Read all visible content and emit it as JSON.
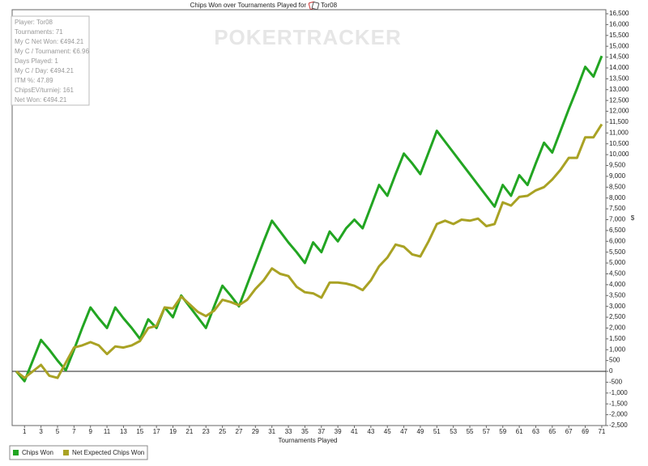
{
  "chart_data": {
    "type": "line",
    "title": "Chips Won over Tournaments Played for",
    "player": "Tor08",
    "watermark": "POKERTRACKER",
    "x_label": "Tournaments Played",
    "y_label": "$",
    "info_box": [
      "Player: Tor08",
      "Tournaments: 71",
      "My C Net Won: €494.21",
      "My C / Tournament: €6.96",
      "Days Played: 1",
      "My C / Day: €494.21",
      "ITM %: 47.89",
      "ChipsEV/turniej: 161",
      "Net Won: €494.21"
    ],
    "legend": "bottom",
    "x": [
      0,
      1,
      2,
      3,
      4,
      5,
      6,
      7,
      8,
      9,
      10,
      11,
      12,
      13,
      14,
      15,
      16,
      17,
      18,
      19,
      20,
      21,
      22,
      23,
      24,
      25,
      26,
      27,
      28,
      29,
      30,
      31,
      32,
      33,
      34,
      35,
      36,
      37,
      38,
      39,
      40,
      41,
      42,
      43,
      44,
      45,
      46,
      47,
      48,
      49,
      50,
      51,
      52,
      53,
      54,
      55,
      56,
      57,
      58,
      59,
      60,
      61,
      62,
      63,
      64,
      65,
      66,
      67,
      68,
      69,
      70,
      71
    ],
    "xlim": [
      -0.5,
      71.5
    ],
    "xticks": [
      1,
      3,
      5,
      7,
      9,
      11,
      13,
      15,
      17,
      19,
      21,
      23,
      25,
      27,
      29,
      31,
      33,
      35,
      37,
      39,
      41,
      43,
      45,
      47,
      49,
      51,
      53,
      55,
      57,
      59,
      61,
      63,
      65,
      67,
      69,
      71
    ],
    "ylim": [
      -2500,
      16500
    ],
    "yticks": [
      {
        "value": -2500,
        "label": "-2,500"
      },
      {
        "value": -2000,
        "label": "-2,000"
      },
      {
        "value": -1500,
        "label": "-1,500"
      },
      {
        "value": -1000,
        "label": "-1,000"
      },
      -500,
      0,
      500,
      {
        "value": 1000,
        "label": "1,000"
      },
      {
        "value": 1500,
        "label": "1,500"
      },
      {
        "value": 2000,
        "label": "2,000"
      },
      {
        "value": 2500,
        "label": "2,500"
      },
      {
        "value": 3000,
        "label": "3,000"
      },
      {
        "value": 3500,
        "label": "3,500"
      },
      {
        "value": 4000,
        "label": "4,000"
      },
      {
        "value": 4500,
        "label": "4,500"
      },
      {
        "value": 5000,
        "label": "5,000"
      },
      {
        "value": 5500,
        "label": "5,500"
      },
      {
        "value": 6000,
        "label": "6,000"
      },
      {
        "value": 6500,
        "label": "6,500"
      },
      {
        "value": 7000,
        "label": "7,000"
      },
      {
        "value": 7500,
        "label": "7,500"
      },
      {
        "value": 8000,
        "label": "8,000"
      },
      {
        "value": 8500,
        "label": "8,500"
      },
      {
        "value": 9000,
        "label": "9,000"
      },
      {
        "value": 9500,
        "label": "9,500"
      },
      {
        "value": 10000,
        "label": "10,000"
      },
      {
        "value": 10500,
        "label": "10,500"
      },
      {
        "value": 11000,
        "label": "11,000"
      },
      {
        "value": 11500,
        "label": "11,500"
      },
      {
        "value": 12000,
        "label": "12,000"
      },
      {
        "value": 12500,
        "label": "12,500"
      },
      {
        "value": 13000,
        "label": "13,000"
      },
      {
        "value": 13500,
        "label": "13,500"
      },
      {
        "value": 14000,
        "label": "14,000"
      },
      {
        "value": 14500,
        "label": "14,500"
      },
      {
        "value": 15000,
        "label": "15,000"
      },
      {
        "value": 15500,
        "label": "15,500"
      },
      {
        "value": 16000,
        "label": "16,000"
      },
      {
        "value": 16500,
        "label": "16,500"
      }
    ],
    "series": [
      {
        "name": "Chips Won",
        "color": "#22a522",
        "values": [
          0,
          -450,
          500,
          1450,
          1000,
          500,
          50,
          1000,
          2000,
          2950,
          2450,
          2000,
          2950,
          2450,
          2000,
          1500,
          2400,
          2000,
          2950,
          2500,
          3500,
          3000,
          2500,
          2000,
          3000,
          3950,
          3500,
          3000,
          4000,
          5000,
          6000,
          6950,
          6450,
          5950,
          5500,
          5000,
          5950,
          5500,
          6450,
          6000,
          6600,
          7000,
          6600,
          7600,
          8600,
          8100,
          9100,
          10050,
          9600,
          9100,
          10100,
          11100,
          10600,
          10100,
          9600,
          9100,
          8600,
          8100,
          7600,
          8600,
          8100,
          9050,
          8600,
          9600,
          10550,
          10100,
          11100,
          12100,
          13050,
          14050,
          13600,
          14550
        ]
      },
      {
        "name": "Net Expected Chips Won",
        "color": "#a9a224",
        "values": [
          0,
          -300,
          0,
          300,
          -200,
          -300,
          400,
          1100,
          1200,
          1350,
          1200,
          800,
          1150,
          1100,
          1200,
          1400,
          2000,
          2100,
          2950,
          2900,
          3450,
          3100,
          2750,
          2550,
          2800,
          3300,
          3200,
          3050,
          3300,
          3800,
          4200,
          4750,
          4500,
          4400,
          3900,
          3650,
          3600,
          3400,
          4100,
          4100,
          4050,
          3950,
          3750,
          4200,
          4850,
          5250,
          5850,
          5750,
          5400,
          5300,
          6000,
          6800,
          6950,
          6800,
          7000,
          6950,
          7050,
          6700,
          6800,
          7800,
          7650,
          8050,
          8100,
          8350,
          8500,
          8850,
          9300,
          9850,
          9850,
          10800,
          10800,
          11400
        ]
      }
    ]
  }
}
